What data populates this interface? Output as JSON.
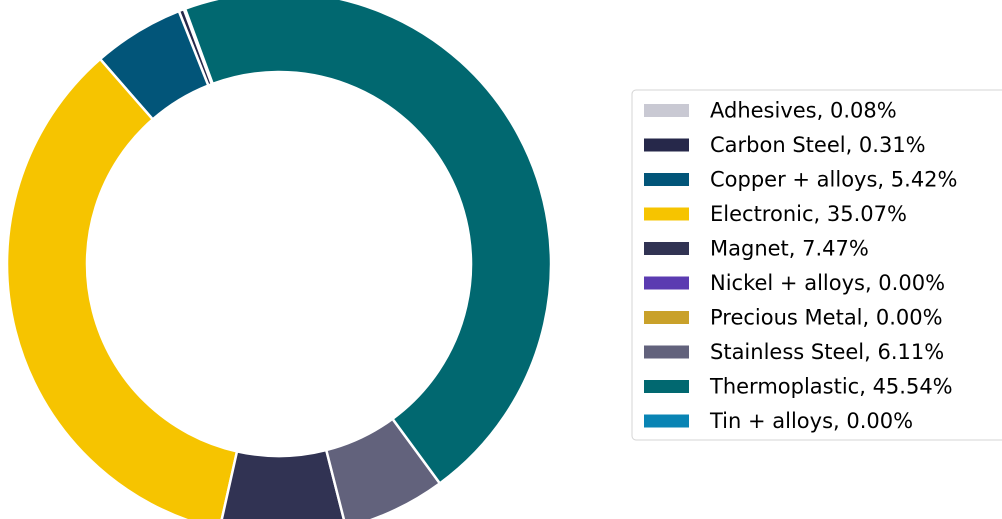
{
  "chart_data": {
    "type": "pie",
    "donut": true,
    "title": "",
    "start_angle_deg": 110.2,
    "direction": "counterclockwise",
    "legend_position": "right",
    "series": [
      {
        "label": "Adhesives, 0.08%",
        "value": 0.08,
        "color": "#c9c9d3"
      },
      {
        "label": "Carbon Steel, 0.31%",
        "value": 0.31,
        "color": "#26284a"
      },
      {
        "label": "Copper + alloys, 5.42%",
        "value": 5.42,
        "color": "#025579"
      },
      {
        "label": "Electronic, 35.07%",
        "value": 35.07,
        "color": "#f6c400"
      },
      {
        "label": "Magnet, 7.47%",
        "value": 7.47,
        "color": "#313353"
      },
      {
        "label": "Nickel + alloys, 0.00%",
        "value": 0.0,
        "color": "#5b3bb1"
      },
      {
        "label": "Precious Metal, 0.00%",
        "value": 0.0,
        "color": "#c9a12a"
      },
      {
        "label": "Stainless Steel, 6.11%",
        "value": 6.11,
        "color": "#62627c"
      },
      {
        "label": "Thermoplastic, 45.54%",
        "value": 45.54,
        "color": "#016870"
      },
      {
        "label": "Tin + alloys, 0.00%",
        "value": 0.0,
        "color": "#0984b4"
      }
    ]
  }
}
